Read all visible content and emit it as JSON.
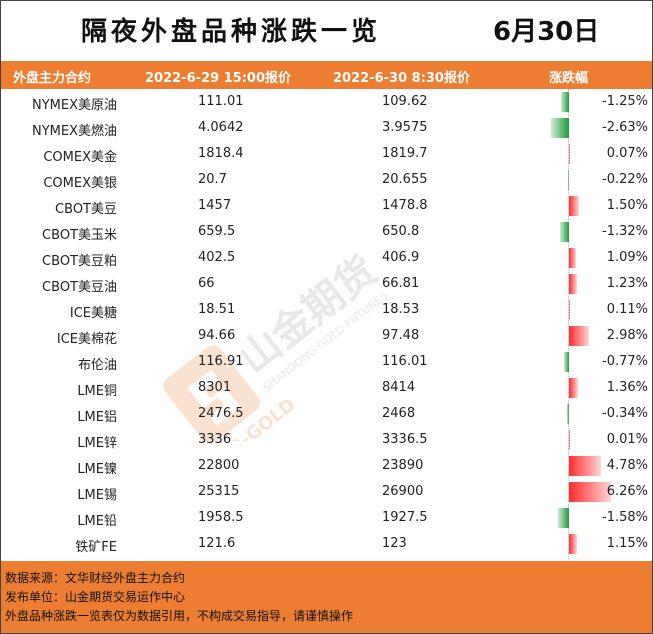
{
  "title": "隔夜外盘品种涨跌一览",
  "date": "6月30日",
  "header": {
    "contract": "外盘主力合约",
    "price1": "2022-6-29  15:00报价",
    "price2": "2022-6-30  8:30报价",
    "change": "涨跌幅"
  },
  "watermark": {
    "brand_cn": "山金期货",
    "brand_en": "SHANDONG GOLD FUTURES",
    "logo_text": "SD-GOLD"
  },
  "table": {
    "rows": [
      {
        "name": "NYMEX美原油",
        "p1": "111.01",
        "p2": "109.62",
        "pct": "-1.25%",
        "value": -1.25
      },
      {
        "name": "NYMEX美燃油",
        "p1": "4.0642",
        "p2": "3.9575",
        "pct": "-2.63%",
        "value": -2.63
      },
      {
        "name": "COMEX美金",
        "p1": "1818.4",
        "p2": "1819.7",
        "pct": "0.07%",
        "value": 0.07
      },
      {
        "name": "COMEX美银",
        "p1": "20.7",
        "p2": "20.655",
        "pct": "-0.22%",
        "value": -0.22
      },
      {
        "name": "CBOT美豆",
        "p1": "1457",
        "p2": "1478.8",
        "pct": "1.50%",
        "value": 1.5
      },
      {
        "name": "CBOT美玉米",
        "p1": "659.5",
        "p2": "650.8",
        "pct": "-1.32%",
        "value": -1.32
      },
      {
        "name": "CBOT美豆粕",
        "p1": "402.5",
        "p2": "406.9",
        "pct": "1.09%",
        "value": 1.09
      },
      {
        "name": "CBOT美豆油",
        "p1": "66",
        "p2": "66.81",
        "pct": "1.23%",
        "value": 1.23
      },
      {
        "name": "ICE美糖",
        "p1": "18.51",
        "p2": "18.53",
        "pct": "0.11%",
        "value": 0.11
      },
      {
        "name": "ICE美棉花",
        "p1": "94.66",
        "p2": "97.48",
        "pct": "2.98%",
        "value": 2.98
      },
      {
        "name": "布伦油",
        "p1": "116.91",
        "p2": "116.01",
        "pct": "-0.77%",
        "value": -0.77
      },
      {
        "name": "LME铜",
        "p1": "8301",
        "p2": "8414",
        "pct": "1.36%",
        "value": 1.36
      },
      {
        "name": "LME铝",
        "p1": "2476.5",
        "p2": "2468",
        "pct": "-0.34%",
        "value": -0.34
      },
      {
        "name": "LME锌",
        "p1": "3336",
        "p2": "3336.5",
        "pct": "0.01%",
        "value": 0.01
      },
      {
        "name": "LME镍",
        "p1": "22800",
        "p2": "23890",
        "pct": "4.78%",
        "value": 4.78
      },
      {
        "name": "LME锡",
        "p1": "25315",
        "p2": "26900",
        "pct": "6.26%",
        "value": 6.26
      },
      {
        "name": "LME铅",
        "p1": "1958.5",
        "p2": "1927.5",
        "pct": "-1.58%",
        "value": -1.58
      },
      {
        "name": "铁矿FE",
        "p1": "121.6",
        "p2": "123",
        "pct": "1.15%",
        "value": 1.15
      }
    ]
  },
  "footer": {
    "source": "数据来源：文华财经外盘主力合约",
    "publisher": "发布单位：山金期货交易运作中心",
    "disclaimer": "外盘品种涨跌一览表仅为数据引用，不构成交易指导，请谨慎操作"
  },
  "colors": {
    "accent": "#ed7d31",
    "up": "#ff2b2b",
    "down": "#1e9b3a"
  }
}
